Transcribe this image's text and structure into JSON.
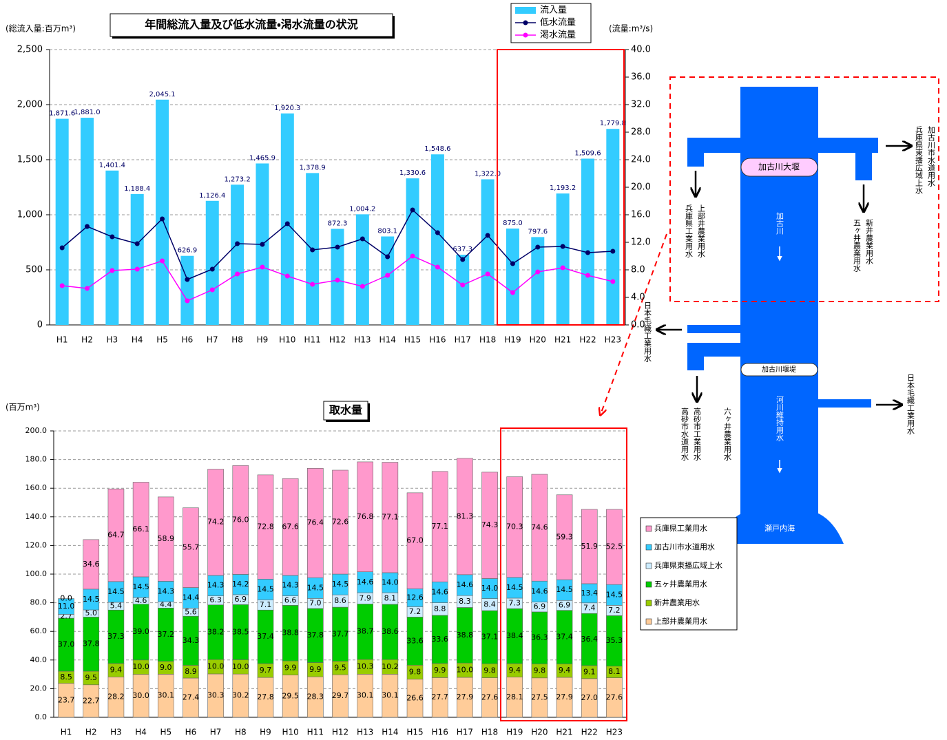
{
  "chart_data": [
    {
      "type": "bar",
      "title": "年間総流入量及び低水流量・渇水流量の状況",
      "y_label": "(総流入量:百万m³)",
      "y2_label": "(流量:m³/s)",
      "categories": [
        "H1",
        "H2",
        "H3",
        "H4",
        "H5",
        "H6",
        "H7",
        "H8",
        "H9",
        "H10",
        "H11",
        "H12",
        "H13",
        "H14",
        "H15",
        "H16",
        "H17",
        "H18",
        "H19",
        "H20",
        "H21",
        "H22",
        "H23"
      ],
      "series": [
        {
          "name": "流入量",
          "type": "bar",
          "color": "#33CCFF",
          "values": [
            1871.6,
            1881.0,
            1401.4,
            1188.4,
            2045.1,
            626.9,
            1126.4,
            1273.2,
            1465.9,
            1920.3,
            1378.9,
            872.3,
            1004.2,
            803.1,
            1330.6,
            1548.6,
            637.3,
            1322.0,
            875.0,
            797.6,
            1193.2,
            1509.6,
            1779.8
          ],
          "value_labels": [
            "1,871.6",
            "1,881.0",
            "1,401.4",
            "1,188.4",
            "2,045.1",
            "626.9",
            "1,126.4",
            "1,273.2",
            "1,465.9",
            "1,920.3",
            "1,378.9",
            "872.3",
            "1,004.2",
            "803.1",
            "1,330.6",
            "1,548.6",
            "637.3",
            "1,322.0",
            "875.0",
            "797.6",
            "1,193.2",
            "1,509.6",
            "1,779.8"
          ]
        },
        {
          "name": "低水流量",
          "type": "line",
          "axis": "y2",
          "color": "#000066",
          "values": [
            11.2,
            14.3,
            12.8,
            11.8,
            15.4,
            6.6,
            8.1,
            11.8,
            11.7,
            14.7,
            10.9,
            11.3,
            12.5,
            9.9,
            16.7,
            13.4,
            9.5,
            13.0,
            8.9,
            11.3,
            11.4,
            10.5,
            10.7
          ]
        },
        {
          "name": "渇水流量",
          "type": "line",
          "axis": "y2",
          "color": "#FF00FF",
          "values": [
            5.7,
            5.3,
            7.9,
            8.1,
            9.3,
            3.5,
            5.1,
            7.4,
            8.4,
            7.1,
            5.9,
            6.5,
            5.6,
            7.2,
            10.0,
            8.4,
            5.8,
            7.4,
            4.7,
            7.7,
            8.3,
            7.2,
            6.3
          ]
        }
      ],
      "ylim": [
        0,
        2500
      ],
      "yticks": [
        0,
        500,
        {
          "value": 1000,
          "label": "1,000"
        },
        {
          "value": 1500,
          "label": "1,500"
        },
        {
          "value": 2000,
          "label": "2,000"
        },
        {
          "value": 2500,
          "label": "2,500"
        }
      ],
      "y2lim": [
        0,
        40
      ],
      "y2ticks": [
        {
          "value": 0,
          "label": "0.0"
        },
        {
          "value": 4,
          "label": "4.0"
        },
        {
          "value": 8,
          "label": "8.0"
        },
        {
          "value": 12,
          "label": "12.0"
        },
        {
          "value": 16,
          "label": "16.0"
        },
        {
          "value": 20,
          "label": "20.0"
        },
        {
          "value": 24,
          "label": "24.0"
        },
        {
          "value": 28,
          "label": "28.0"
        },
        {
          "value": 32,
          "label": "32.0"
        },
        {
          "value": 36,
          "label": "36.0"
        },
        {
          "value": 40,
          "label": "40.0"
        }
      ],
      "grid": true
    },
    {
      "type": "stacked_bar",
      "title": "取水量",
      "y_label": "(百万m³)",
      "categories": [
        "H1",
        "H2",
        "H3",
        "H4",
        "H5",
        "H6",
        "H7",
        "H8",
        "H9",
        "H10",
        "H11",
        "H12",
        "H13",
        "H14",
        "H15",
        "H16",
        "H17",
        "H18",
        "H19",
        "H20",
        "H21",
        "H22",
        "H23"
      ],
      "series": [
        {
          "name": "上部井農業用水",
          "color": "#FFCC99",
          "values": [
            23.7,
            22.7,
            28.2,
            30.0,
            30.1,
            27.4,
            30.3,
            30.2,
            27.8,
            29.5,
            28.3,
            29.7,
            30.1,
            30.1,
            26.6,
            27.7,
            27.9,
            27.6,
            28.1,
            27.5,
            27.9,
            27.0,
            27.6
          ],
          "value_labels": [
            "23.7",
            "22.7",
            "28.2",
            "30.0",
            "30.1",
            "27.4",
            "30.3",
            "30.2",
            "27.8",
            "29.5",
            "28.3",
            "29.7",
            "30.1",
            "30.1",
            "26.6",
            "27.7",
            "27.9",
            "27.6",
            "28.1",
            "27.5",
            "27.9",
            "27.0",
            "27.6"
          ]
        },
        {
          "name": "新井農業用水",
          "color": "#99CC00",
          "values": [
            8.5,
            9.5,
            9.4,
            10.0,
            9.0,
            8.9,
            10.0,
            10.0,
            9.7,
            9.9,
            9.9,
            9.5,
            10.3,
            10.2,
            9.8,
            9.9,
            10.0,
            9.8,
            9.4,
            9.8,
            9.4,
            9.1,
            8.1
          ],
          "value_labels": [
            "8.5",
            "9.5",
            "9.4",
            "10.0",
            "9.0",
            "8.9",
            "10.0",
            "10.0",
            "9.7",
            "9.9",
            "9.9",
            "9.5",
            "10.3",
            "10.2",
            "9.8",
            "9.9",
            "10.0",
            "9.8",
            "9.4",
            "9.8",
            "9.4",
            "9.1",
            "8.1"
          ]
        },
        {
          "name": "五ヶ井農業用水",
          "color": "#00CC00",
          "values": [
            37.0,
            37.8,
            37.3,
            39.0,
            37.2,
            34.3,
            38.2,
            38.5,
            37.4,
            38.8,
            37.8,
            37.7,
            38.7,
            38.6,
            33.6,
            33.6,
            38.8,
            37.1,
            38.4,
            36.3,
            37.4,
            36.4,
            35.3
          ],
          "value_labels": [
            "37.0",
            "37.8",
            "37.3",
            "39.0",
            "37.2",
            "34.3",
            "38.2",
            "38.5",
            "37.4",
            "38.8",
            "37.8",
            "37.7",
            "38.7",
            "38.6",
            "33.6",
            "33.6",
            "38.8",
            "37.1",
            "38.4",
            "36.3",
            "37.4",
            "36.4",
            "35.3"
          ]
        },
        {
          "name": "兵庫県東播広域上水",
          "color": "#CCECFF",
          "values": [
            2.7,
            5.0,
            5.4,
            4.6,
            4.4,
            5.6,
            6.3,
            6.9,
            7.1,
            6.6,
            7.0,
            8.6,
            7.9,
            8.1,
            7.2,
            8.8,
            8.3,
            8.4,
            7.3,
            6.9,
            6.9,
            7.4,
            7.2
          ],
          "value_labels": [
            "2.7",
            "5.0",
            "5.4",
            "4.6",
            "4.4",
            "5.6",
            "6.3",
            "6.9",
            "7.1",
            "6.6",
            "7.0",
            "8.6",
            "7.9",
            "8.1",
            "7.2",
            "8.8",
            "8.3",
            "8.4",
            "7.3",
            "6.9",
            "6.9",
            "7.4",
            "7.2"
          ]
        },
        {
          "name": "加古川市水道用水",
          "color": "#33CCFF",
          "values": [
            11.0,
            14.5,
            14.5,
            14.5,
            14.3,
            14.4,
            14.3,
            14.2,
            14.5,
            14.3,
            14.5,
            14.5,
            14.6,
            14.0,
            12.6,
            14.6,
            14.6,
            14.0,
            14.5,
            14.6,
            14.5,
            13.4,
            14.5
          ],
          "value_labels": [
            "11.0",
            "14.5",
            "14.5",
            "14.5",
            "14.3",
            "14.4",
            "14.3",
            "14.2",
            "14.5",
            "14.3",
            "14.5",
            "14.5",
            "14.6",
            "14.0",
            "12.6",
            "14.6",
            "14.6",
            "14.0",
            "14.5",
            "14.6",
            "14.5",
            "13.4",
            "14.5"
          ]
        },
        {
          "name": "兵庫県工業用水",
          "color": "#FF99CC",
          "values": [
            0.0,
            34.6,
            64.7,
            66.1,
            58.9,
            55.7,
            74.2,
            76.0,
            72.8,
            67.6,
            76.4,
            72.6,
            76.8,
            77.1,
            67.0,
            77.1,
            81.3,
            74.3,
            70.3,
            74.6,
            59.3,
            51.9,
            52.5
          ],
          "value_labels": [
            "0.0",
            "34.6",
            "64.7",
            "66.1",
            "58.9",
            "55.7",
            "74.2",
            "76.0",
            "72.8",
            "67.6",
            "76.4",
            "72.6",
            "76.8",
            "77.1",
            "67.0",
            "77.1",
            "81.3",
            "74.3",
            "70.3",
            "74.6",
            "59.3",
            "51.9",
            "52.5"
          ]
        }
      ],
      "ylim": [
        0,
        200
      ],
      "yticks": [
        {
          "value": 0,
          "label": "0.0"
        },
        {
          "value": 20,
          "label": "20.0"
        },
        {
          "value": 40,
          "label": "40.0"
        },
        {
          "value": 60,
          "label": "60.0"
        },
        {
          "value": 80,
          "label": "80.0"
        },
        {
          "value": 100,
          "label": "100.0"
        },
        {
          "value": 120,
          "label": "120.0"
        },
        {
          "value": 140,
          "label": "140.0"
        },
        {
          "value": 160,
          "label": "160.0"
        },
        {
          "value": 180,
          "label": "180.0"
        },
        {
          "value": 200,
          "label": "200.0"
        }
      ],
      "grid": true
    }
  ],
  "diagram": {
    "dam": "加古川大堰",
    "river": "加古川",
    "weir": "加古川堰堤",
    "maintenance": "河川維持用水",
    "sea": "瀬戸内海",
    "intakes": [
      "上部井農業用水",
      "兵庫県工業用水",
      "新井農業用水",
      "五ヶ井農業用水",
      "加古川市水道用水",
      "兵庫県東播広域上水",
      "日本毛織工業用水",
      "六ヶ井農業用水",
      "高砂市工業用水",
      "高砂市水道用水",
      "日本毛織工業用水"
    ]
  }
}
